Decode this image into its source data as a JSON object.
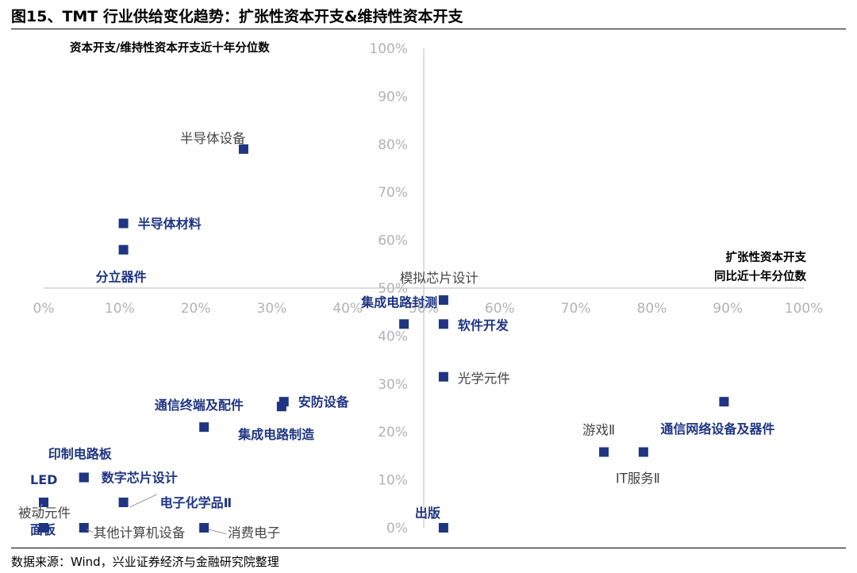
{
  "header": {
    "title": "图15、TMT 行业供给变化趋势：扩张性资本开支&维持性资本开支"
  },
  "footer": {
    "source": "数据来源：Wind，兴业证券经济与金融研究院整理"
  },
  "colors": {
    "marker": "#1f3583",
    "highlight_label": "#1f3583",
    "normal_label": "#444444",
    "tick_label": "#b3b3b3",
    "axis": "#c8c8c8"
  },
  "chart_data": {
    "type": "scatter",
    "title": "图15、TMT 行业供给变化趋势：扩张性资本开支&维持性资本开支",
    "ylabel": "资本开支/维持性资本开支近十年分位数",
    "xlabel_lines": [
      "扩张性资本开支",
      "同比近十年分位数"
    ],
    "xlim": [
      0,
      100
    ],
    "ylim": [
      0,
      100
    ],
    "x_ticks": [
      "0%",
      "10%",
      "20%",
      "30%",
      "40%",
      "50%",
      "60%",
      "70%",
      "80%",
      "90%",
      "100%"
    ],
    "y_ticks": [
      "0%",
      "10%",
      "20%",
      "30%",
      "40%",
      "50%",
      "60%",
      "70%",
      "80%",
      "90%",
      "100%"
    ],
    "axes_cross": {
      "x": 50,
      "y": 50
    },
    "points": [
      {
        "name": "半导体设备",
        "x": 26.3,
        "y": 79,
        "bold": false
      },
      {
        "name": "半导体材料",
        "x": 10.5,
        "y": 63.5,
        "bold": true
      },
      {
        "name": "分立器件",
        "x": 10.5,
        "y": 58,
        "bold": true
      },
      {
        "name": "模拟芯片设计",
        "x": 52.6,
        "y": 47.5,
        "bold": false
      },
      {
        "name": "集成电路封测",
        "x": 47.4,
        "y": 42.5,
        "bold": true
      },
      {
        "name": "软件开发",
        "x": 52.6,
        "y": 42.5,
        "bold": true
      },
      {
        "name": "光学元件",
        "x": 52.6,
        "y": 31.5,
        "bold": false
      },
      {
        "name": "安防设备",
        "x": 31.6,
        "y": 26.3,
        "bold": true
      },
      {
        "name": "通信终端及配件",
        "x": 31.3,
        "y": 25.3,
        "bold": true
      },
      {
        "name": "集成电路制造",
        "x": 21.1,
        "y": 21,
        "bold": true
      },
      {
        "name": "通信网络设备及器件",
        "x": 89.5,
        "y": 26.3,
        "bold": true
      },
      {
        "name": "游戏Ⅱ",
        "x": 73.7,
        "y": 15.8,
        "bold": false
      },
      {
        "name": "IT服务Ⅱ",
        "x": 78.9,
        "y": 15.8,
        "bold": false
      },
      {
        "name": "印制电路板",
        "x": 5.3,
        "y": 10.5,
        "bold": true
      },
      {
        "name": "数字芯片设计",
        "x": 5.3,
        "y": 10.5,
        "bold": true
      },
      {
        "name": "LED",
        "x": 0,
        "y": 5.3,
        "bold": true
      },
      {
        "name": "被动元件",
        "x": 0,
        "y": 5.3,
        "bold": false
      },
      {
        "name": "电子化学品Ⅱ",
        "x": 10.5,
        "y": 5.3,
        "bold": true
      },
      {
        "name": "面板",
        "x": 0,
        "y": 0,
        "bold": true
      },
      {
        "name": "其他计算机设备",
        "x": 5.3,
        "y": 0,
        "bold": false
      },
      {
        "name": "消费电子",
        "x": 21.1,
        "y": 0,
        "bold": false
      },
      {
        "name": "出版",
        "x": 52.6,
        "y": 0,
        "bold": true
      }
    ]
  }
}
